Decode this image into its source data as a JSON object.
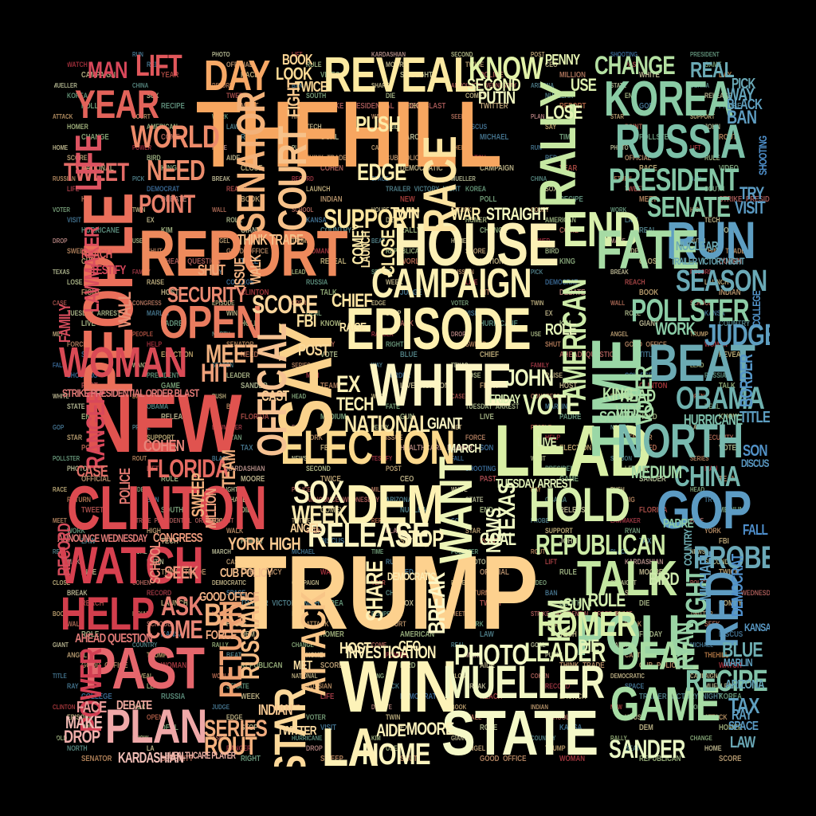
{
  "words": [
    {
      "id": "thehill",
      "text": "THEHILL",
      "color": "#F7A660"
    },
    {
      "id": "trump",
      "text": "TRUMP",
      "color": "#FDD18E"
    },
    {
      "id": "people",
      "text": "PEOPLE",
      "color": "#EA6F5A"
    },
    {
      "id": "report",
      "text": "REPORT",
      "color": "#EE8A5C"
    },
    {
      "id": "new",
      "text": "NEW",
      "color": "#E0534F"
    },
    {
      "id": "clinton",
      "text": "CLINTON",
      "color": "#DD4A50"
    },
    {
      "id": "past",
      "text": "PAST",
      "color": "#E5666C"
    },
    {
      "id": "watch",
      "text": "WATCH",
      "color": "#D7404F"
    },
    {
      "id": "woman",
      "text": "WOMAN",
      "color": "#D94A55"
    },
    {
      "id": "help",
      "text": "HELP",
      "color": "#D23E4C"
    },
    {
      "id": "plan",
      "text": "PLAN",
      "color": "#EFA8A8"
    },
    {
      "id": "house",
      "text": "HOUSE",
      "color": "#FCF0B6"
    },
    {
      "id": "episode",
      "text": "EPISODE",
      "color": "#FEF0B0"
    },
    {
      "id": "white",
      "text": "WHITE",
      "color": "#FDF5C3"
    },
    {
      "id": "campaign",
      "text": "CAMPAIGN",
      "color": "#FCF0B4"
    },
    {
      "id": "reveal",
      "text": "REVEAL",
      "color": "#FDE9A1"
    },
    {
      "id": "election",
      "text": "ELECTION",
      "color": "#FBD98D"
    },
    {
      "id": "say",
      "text": "SAY",
      "color": "#FAD28C"
    },
    {
      "id": "dem",
      "text": "DEM",
      "color": "#FDF1B3"
    },
    {
      "id": "win",
      "text": "WIN",
      "color": "#FDF3B8"
    },
    {
      "id": "state",
      "text": "STATE",
      "color": "#F5F9C8"
    },
    {
      "id": "mueller",
      "text": "MUELLER",
      "color": "#F2F7C4"
    },
    {
      "id": "lead",
      "text": "LEAD",
      "color": "#D9EFA5"
    },
    {
      "id": "want",
      "text": "WANT",
      "color": "#EDF5B8"
    },
    {
      "id": "time",
      "text": "TIME",
      "color": "#9AD7A6"
    },
    {
      "id": "rally",
      "text": "RALLY",
      "color": "#C6E8A2"
    },
    {
      "id": "hold",
      "text": "HOLD",
      "color": "#D6EEAB"
    },
    {
      "id": "end",
      "text": "END",
      "color": "#D9F0AC"
    },
    {
      "id": "korea",
      "text": "KOREA",
      "color": "#8ACBA5"
    },
    {
      "id": "russia",
      "text": "RUSSIA",
      "color": "#7CC0A8"
    },
    {
      "id": "president",
      "text": "PRESIDENT",
      "color": "#84C6A6"
    },
    {
      "id": "run",
      "text": "RUN",
      "color": "#5E9EC2"
    },
    {
      "id": "beat",
      "text": "BEAT",
      "color": "#6BAAB3"
    },
    {
      "id": "north",
      "text": "NORTH",
      "color": "#78B9AE"
    },
    {
      "id": "gop",
      "text": "GOP",
      "color": "#5C9BC3"
    },
    {
      "id": "poll",
      "text": "POLL",
      "color": "#9BD4A4"
    },
    {
      "id": "talk",
      "text": "TALK",
      "color": "#C3E6A1"
    },
    {
      "id": "game",
      "text": "GAME",
      "color": "#A6DCA4"
    },
    {
      "id": "red",
      "text": "RED",
      "color": "#5E9CC1"
    },
    {
      "id": "republican",
      "text": "REPUBLICAN",
      "color": "#CDEBA6"
    },
    {
      "id": "senator",
      "text": "SENATOR",
      "color": "#F3B27A"
    },
    {
      "id": "star",
      "text": "STAR",
      "color": "#FCD899"
    },
    {
      "id": "attack",
      "text": "ATTACK",
      "color": "#F8C587"
    },
    {
      "id": "open",
      "text": "OPEN",
      "color": "#E97C5F"
    },
    {
      "id": "day",
      "text": "DAY",
      "color": "#F7A866"
    },
    {
      "id": "year",
      "text": "YEAR",
      "color": "#E2635A"
    },
    {
      "id": "world",
      "text": "WORLD",
      "color": "#ED8B6A"
    },
    {
      "id": "need",
      "text": "NEED",
      "color": "#EB8C6C"
    },
    {
      "id": "point",
      "text": "POINT",
      "color": "#E9806A"
    },
    {
      "id": "homer",
      "text": "HOMER",
      "color": "#D9EFA8"
    },
    {
      "id": "deal",
      "text": "DEAL",
      "color": "#A7DCA3"
    },
    {
      "id": "obama",
      "text": "OBAMA",
      "color": "#6FB1AE"
    },
    {
      "id": "china",
      "text": "CHINA",
      "color": "#74B5AD"
    },
    {
      "id": "senate",
      "text": "SENATE",
      "color": "#87C8A6"
    },
    {
      "id": "season",
      "text": "SEASON",
      "color": "#6AA9B6"
    },
    {
      "id": "pollster",
      "text": "POLLSTER",
      "color": "#8CCDA6"
    },
    {
      "id": "change",
      "text": "CHANGE",
      "color": "#B4E0A2"
    },
    {
      "id": "know",
      "text": "KNOW",
      "color": "#E2F2A8"
    },
    {
      "id": "release",
      "text": "RELEASE",
      "color": "#FDF5C2"
    },
    {
      "id": "sox",
      "text": "SOX",
      "color": "#FCF4C0"
    },
    {
      "id": "week",
      "text": "WEEK",
      "color": "#FAEAB0"
    },
    {
      "id": "leader",
      "text": "LEADER",
      "color": "#E6F4B8"
    },
    {
      "id": "photo",
      "text": "PHOTO",
      "color": "#F4F9C6"
    },
    {
      "id": "home",
      "text": "HOME",
      "color": "#FDF4BE"
    },
    {
      "id": "la",
      "text": "LA",
      "color": "#FEF0B5"
    },
    {
      "id": "probe",
      "text": "PROBE",
      "color": "#6BA8B7"
    },
    {
      "id": "recipe",
      "text": "RECIPE",
      "color": "#82C3A8"
    },
    {
      "id": "judge",
      "text": "JUDGE",
      "color": "#5E9EC0"
    },
    {
      "id": "sander",
      "text": "SANDER",
      "color": "#E9F6C3"
    },
    {
      "id": "official",
      "text": "OFFICIAL",
      "color": "#F6C292"
    },
    {
      "id": "score",
      "text": "SCORE",
      "color": "#F9D49B"
    },
    {
      "id": "security",
      "text": "SECURITY",
      "color": "#E98970"
    },
    {
      "id": "support",
      "text": "SUPPORT",
      "color": "#FDE6A0"
    },
    {
      "id": "court",
      "text": "COURT",
      "color": "#F7C28A"
    },
    {
      "id": "edge",
      "text": "EDGE",
      "color": "#FDEEB0"
    },
    {
      "id": "push",
      "text": "PUSH",
      "color": "#FDEBA8"
    },
    {
      "id": "race",
      "text": "RACE",
      "color": "#FCE3A0"
    },
    {
      "id": "national",
      "text": "NATIONAL",
      "color": "#FCE9AC"
    },
    {
      "id": "vote",
      "text": "VOTE",
      "color": "#E3F3B6"
    },
    {
      "id": "john",
      "text": "JOHN",
      "color": "#EFF7C2"
    },
    {
      "id": "american",
      "text": "AMERICAN",
      "color": "#CDEBA8"
    },
    {
      "id": "stop",
      "text": "STOP",
      "color": "#FDF3BB"
    },
    {
      "id": "big",
      "text": "BIG",
      "color": "#F3B27E"
    },
    {
      "id": "return",
      "text": "RETURN",
      "color": "#EDA071"
    },
    {
      "id": "russian",
      "text": "RUSSIAN",
      "color": "#F5BC84"
    },
    {
      "id": "series",
      "text": "SERIES",
      "color": "#F0AC7E"
    },
    {
      "id": "rout",
      "text": "ROUT",
      "color": "#F4B27E"
    },
    {
      "id": "come",
      "text": "COME",
      "color": "#EA8777"
    },
    {
      "id": "ask",
      "text": "ASK",
      "color": "#E57F72"
    },
    {
      "id": "florida",
      "text": "FLORIDA",
      "color": "#E66B62"
    },
    {
      "id": "tweet",
      "text": "TWEET",
      "color": "#E26A66"
    },
    {
      "id": "life",
      "text": "LIFE",
      "color": "#DC5361"
    },
    {
      "id": "man",
      "text": "MAN",
      "color": "#D8475A"
    },
    {
      "id": "lift",
      "text": "LIFT",
      "color": "#E0575B"
    },
    {
      "id": "power",
      "text": "POWER",
      "color": "#D33F53"
    },
    {
      "id": "ranger",
      "text": "RANGER",
      "color": "#D8485A"
    },
    {
      "id": "lawmaker",
      "text": "LAWMAKER",
      "color": "#DB4E5E"
    },
    {
      "id": "meet",
      "text": "MEET",
      "color": "#F0B17F"
    },
    {
      "id": "hit",
      "text": "HIT",
      "color": "#EDA07A"
    },
    {
      "id": "team",
      "text": "TEAM",
      "color": "#EFAC7C"
    },
    {
      "id": "rule",
      "text": "RULE",
      "color": "#D3EEAE"
    },
    {
      "id": "bird",
      "text": "BIRD",
      "color": "#CFEAAD"
    },
    {
      "id": "right",
      "text": "RIGHT",
      "color": "#90CDA7"
    },
    {
      "id": "ryan",
      "text": "RYAN",
      "color": "#9AD3A6"
    },
    {
      "id": "work",
      "text": "WORK",
      "color": "#8ACBA6"
    },
    {
      "id": "voter",
      "text": "VOTER",
      "color": "#A3D9A6"
    },
    {
      "id": "head",
      "text": "HEAD",
      "color": "#B0DEA6"
    },
    {
      "id": "video",
      "text": "VIDEO",
      "color": "#A8DBA6"
    },
    {
      "id": "king",
      "text": "KING",
      "color": "#B8E2A6"
    },
    {
      "id": "blue",
      "text": "BLUE",
      "color": "#6EAEB2"
    },
    {
      "id": "tax",
      "text": "TAX",
      "color": "#5F9FBF"
    },
    {
      "id": "law",
      "text": "LAW",
      "color": "#6AA8B6"
    },
    {
      "id": "visit",
      "text": "VISIT",
      "color": "#5A9AC2"
    },
    {
      "id": "try",
      "text": "TRY",
      "color": "#5C9BC2"
    },
    {
      "id": "ban",
      "text": "BAN",
      "color": "#5E9CC0"
    },
    {
      "id": "pick",
      "text": "PICK",
      "color": "#6AA9B6"
    },
    {
      "id": "way",
      "text": "WAY",
      "color": "#64A4BA"
    },
    {
      "id": "black",
      "text": "BLACK",
      "color": "#5F9FBE"
    },
    {
      "id": "real",
      "text": "REAL",
      "color": "#6BAAB5"
    },
    {
      "id": "hurricane",
      "text": "HURRICANE",
      "color": "#7DBFAA"
    },
    {
      "id": "medium",
      "text": "MEDIUM",
      "color": "#A2D8A6"
    },
    {
      "id": "south",
      "text": "SOUTH",
      "color": "#A4D9A6"
    },
    {
      "id": "democrat",
      "text": "DEMOCRAT",
      "color": "#4F8FCA"
    },
    {
      "id": "border",
      "text": "BORDER",
      "color": "#5595C6"
    },
    {
      "id": "kardashian",
      "text": "KARDASHIAN",
      "color": "#F3C0B8"
    },
    {
      "id": "make",
      "text": "MAKE",
      "color": "#F0B9B2"
    },
    {
      "id": "drop",
      "text": "DROP",
      "color": "#EFAEAA"
    },
    {
      "id": "face",
      "text": "FACE",
      "color": "#E89896"
    },
    {
      "id": "strike",
      "text": "STRIKE PRESIDENTIAL ORDER BLAST",
      "color": "#E27A77"
    },
    {
      "id": "debate",
      "text": "DEBATE",
      "color": "#EFAA9F"
    },
    {
      "id": "investigation",
      "text": "INVESTIGATION",
      "color": "#FCEFB8"
    },
    {
      "id": "moore",
      "text": "MOORE",
      "color": "#FDF2BD"
    },
    {
      "id": "aide",
      "text": "AIDE",
      "color": "#FCF1BA"
    },
    {
      "id": "sweep",
      "text": "SWEEP",
      "color": "#F0AF7C"
    },
    {
      "id": "york",
      "text": "YORK",
      "color": "#F6BE88"
    },
    {
      "id": "high",
      "text": "HIGH",
      "color": "#F9CB92"
    },
    {
      "id": "twin",
      "text": "TWIN",
      "color": "#FCE9AA"
    },
    {
      "id": "war",
      "text": "WAR",
      "color": "#FCEBAA"
    },
    {
      "id": "straight",
      "text": "STRAIGHT",
      "color": "#F4F8C0"
    },
    {
      "id": "close",
      "text": "CLOSE",
      "color": "#FDEAA6"
    },
    {
      "id": "chief",
      "text": "CHIEF",
      "color": "#FCE4A2"
    },
    {
      "id": "fbi",
      "text": "FBI",
      "color": "#FBDF9E"
    },
    {
      "id": "tech",
      "text": "TECH",
      "color": "#FDEFB4"
    },
    {
      "id": "ex",
      "text": "EX",
      "color": "#FDF0B6"
    },
    {
      "id": "fate",
      "text": "FATE",
      "color": "#A6DBA4"
    },
    {
      "id": "share",
      "text": "SHARE",
      "color": "#FEF0B6"
    },
    {
      "id": "break",
      "text": "BREAK",
      "color": "#FCF6C6"
    },
    {
      "id": "texas",
      "text": "TEXAS",
      "color": "#EFF8C2"
    },
    {
      "id": "news",
      "text": "NEWS",
      "color": "#F2F8C5"
    },
    {
      "id": "goal",
      "text": "GOAL",
      "color": "#F1F8C4"
    },
    {
      "id": "kim",
      "text": "KIM",
      "color": "#D7EFAE"
    },
    {
      "id": "gun",
      "text": "GUN",
      "color": "#D2EDAC"
    },
    {
      "id": "die",
      "text": "DIE",
      "color": "#DDF1B3"
    },
    {
      "id": "reach",
      "text": "REACH",
      "color": "#E25F5F"
    },
    {
      "id": "lose",
      "text": "LOSE",
      "color": "#E7F5B6"
    },
    {
      "id": "second",
      "text": "SECOND",
      "color": "#EDF6B4"
    },
    {
      "id": "putin",
      "text": "PUTIN",
      "color": "#F2F7C0"
    },
    {
      "id": "use",
      "text": "USE",
      "color": "#DCF0AE"
    },
    {
      "id": "penny",
      "text": "PENNY",
      "color": "#E6F4B2"
    },
    {
      "id": "look",
      "text": "LOOK",
      "color": "#FCDC96"
    },
    {
      "id": "book",
      "text": "BOOK",
      "color": "#FBD594"
    },
    {
      "id": "fight",
      "text": "FIGHT",
      "color": "#F8C78C"
    },
    {
      "id": "twice",
      "text": "TWICE",
      "color": "#FBD897"
    },
    {
      "id": "think",
      "text": "THINK TRADE",
      "color": "#F6C08A"
    },
    {
      "id": "shut",
      "text": "SHUT",
      "color": "#EFA678"
    },
    {
      "id": "issue",
      "text": "ISSUE",
      "color": "#F2B282"
    },
    {
      "id": "walk",
      "text": "WALK",
      "color": "#F3B784"
    },
    {
      "id": "wall",
      "text": "WALL",
      "color": "#E98F74"
    },
    {
      "id": "case",
      "text": "CASE",
      "color": "#DF6E66"
    },
    {
      "id": "police",
      "text": "POLICE",
      "color": "#E27870"
    },
    {
      "id": "cohen",
      "text": "COHEN",
      "color": "#E8857A"
    },
    {
      "id": "ahead",
      "text": "AHEAD QUESTION",
      "color": "#E17A76"
    },
    {
      "id": "healthcare",
      "text": "HEALTHCARE  PLAYER",
      "color": "#EFB2A6"
    },
    {
      "id": "fr",
      "text": "FRIDAY",
      "color": "#DDF0B4"
    },
    {
      "id": "role",
      "text": "ROLE",
      "color": "#E5F4B9"
    },
    {
      "id": "tuesday",
      "text": "TUESDAY  ARREST",
      "color": "#E2F3B8"
    },
    {
      "id": "wednesday",
      "text": "ANNOUNCE WEDNESDAY",
      "color": "#E27B77"
    },
    {
      "id": "record",
      "text": "RECORD",
      "color": "#D54B5B"
    },
    {
      "id": "family",
      "text": "FAMILY",
      "color": "#D64C5C"
    },
    {
      "id": "testify",
      "text": "TESTIFY",
      "color": "#D4465A"
    },
    {
      "id": "march",
      "text": "MARCH",
      "color": "#F7FAC9"
    },
    {
      "id": "giant",
      "text": "GIANT",
      "color": "#FBF6C4"
    },
    {
      "id": "lead2",
      "text": "LIVE",
      "color": "#DDF1B2"
    },
    {
      "id": "comey",
      "text": "COMEY",
      "color": "#FDEBAA"
    },
    {
      "id": "launch",
      "text": "LAUNCH",
      "color": "#FCE5A4"
    },
    {
      "id": "raise",
      "text": "RAISE",
      "color": "#FCE7A8"
    },
    {
      "id": "post",
      "text": "POST",
      "color": "#FAD99B"
    },
    {
      "id": "cast",
      "text": "CAST",
      "color": "#F8CC94"
    },
    {
      "id": "angel",
      "text": "ANGEL",
      "color": "#FAD49A"
    },
    {
      "id": "met",
      "text": "MET",
      "color": "#FBDFA4"
    },
    {
      "id": "twitter",
      "text": "TWITTER",
      "color": "#FAD9A0"
    },
    {
      "id": "indian",
      "text": "INDIAN",
      "color": "#F7C892"
    },
    {
      "id": "host",
      "text": "HOST",
      "color": "#FCEBB2"
    },
    {
      "id": "ceo",
      "text": "CEO",
      "color": "#FCEEB4"
    },
    {
      "id": "cub",
      "text": "CUB POLICY",
      "color": "#F5BF8C"
    },
    {
      "id": "good",
      "text": "GOOD OFFICE",
      "color": "#F2B385"
    },
    {
      "id": "force",
      "text": "FORCE",
      "color": "#EFAA80"
    },
    {
      "id": "seek",
      "text": "SEEK",
      "color": "#EA937A"
    },
    {
      "id": "school",
      "text": "SCHOOL",
      "color": "#E98A78"
    },
    {
      "id": "congress",
      "text": "CONGRESS",
      "color": "#EC9A7C"
    },
    {
      "id": "million",
      "text": "MILLION",
      "color": "#EEA07E"
    },
    {
      "id": "democrat2",
      "text": "DEMOCRATIC",
      "color": "#FDEBB2"
    },
    {
      "id": "title",
      "text": "TITLE",
      "color": "#5D9DC0"
    },
    {
      "id": "son",
      "text": "SON",
      "color": "#5292C8"
    },
    {
      "id": "discus",
      "text": "DISCUS",
      "color": "#5A99C3"
    },
    {
      "id": "kansa",
      "text": "KANSA",
      "color": "#5898C4"
    },
    {
      "id": "marlin",
      "text": "MARLIN",
      "color": "#5F9FBE"
    },
    {
      "id": "arizona",
      "text": "ARIZONA",
      "color": "#68A7B8"
    },
    {
      "id": "space",
      "text": "SPACE",
      "color": "#5A9AC2"
    },
    {
      "id": "ray",
      "text": "RAY",
      "color": "#5D9CC0"
    },
    {
      "id": "fall",
      "text": "FALL",
      "color": "#4E8ECB"
    },
    {
      "id": "michael",
      "text": "MICHAEL",
      "color": "#5E9DC0"
    },
    {
      "id": "country",
      "text": "COUNTRY",
      "color": "#6EADB2"
    },
    {
      "id": "padre",
      "text": "PADRE",
      "color": "#8AC9A7"
    },
    {
      "id": "nuclear",
      "text": "NUCLEAR",
      "color": "#6CAAB4"
    },
    {
      "id": "trailer",
      "text": "TRAILER VICTORY NIGHT",
      "color": "#6AA8B6"
    },
    {
      "id": "college",
      "text": "COLLEGE",
      "color": "#5192C8"
    },
    {
      "id": "shooting",
      "text": "SHOOTING",
      "color": "#4E8FCA"
    }
  ]
}
